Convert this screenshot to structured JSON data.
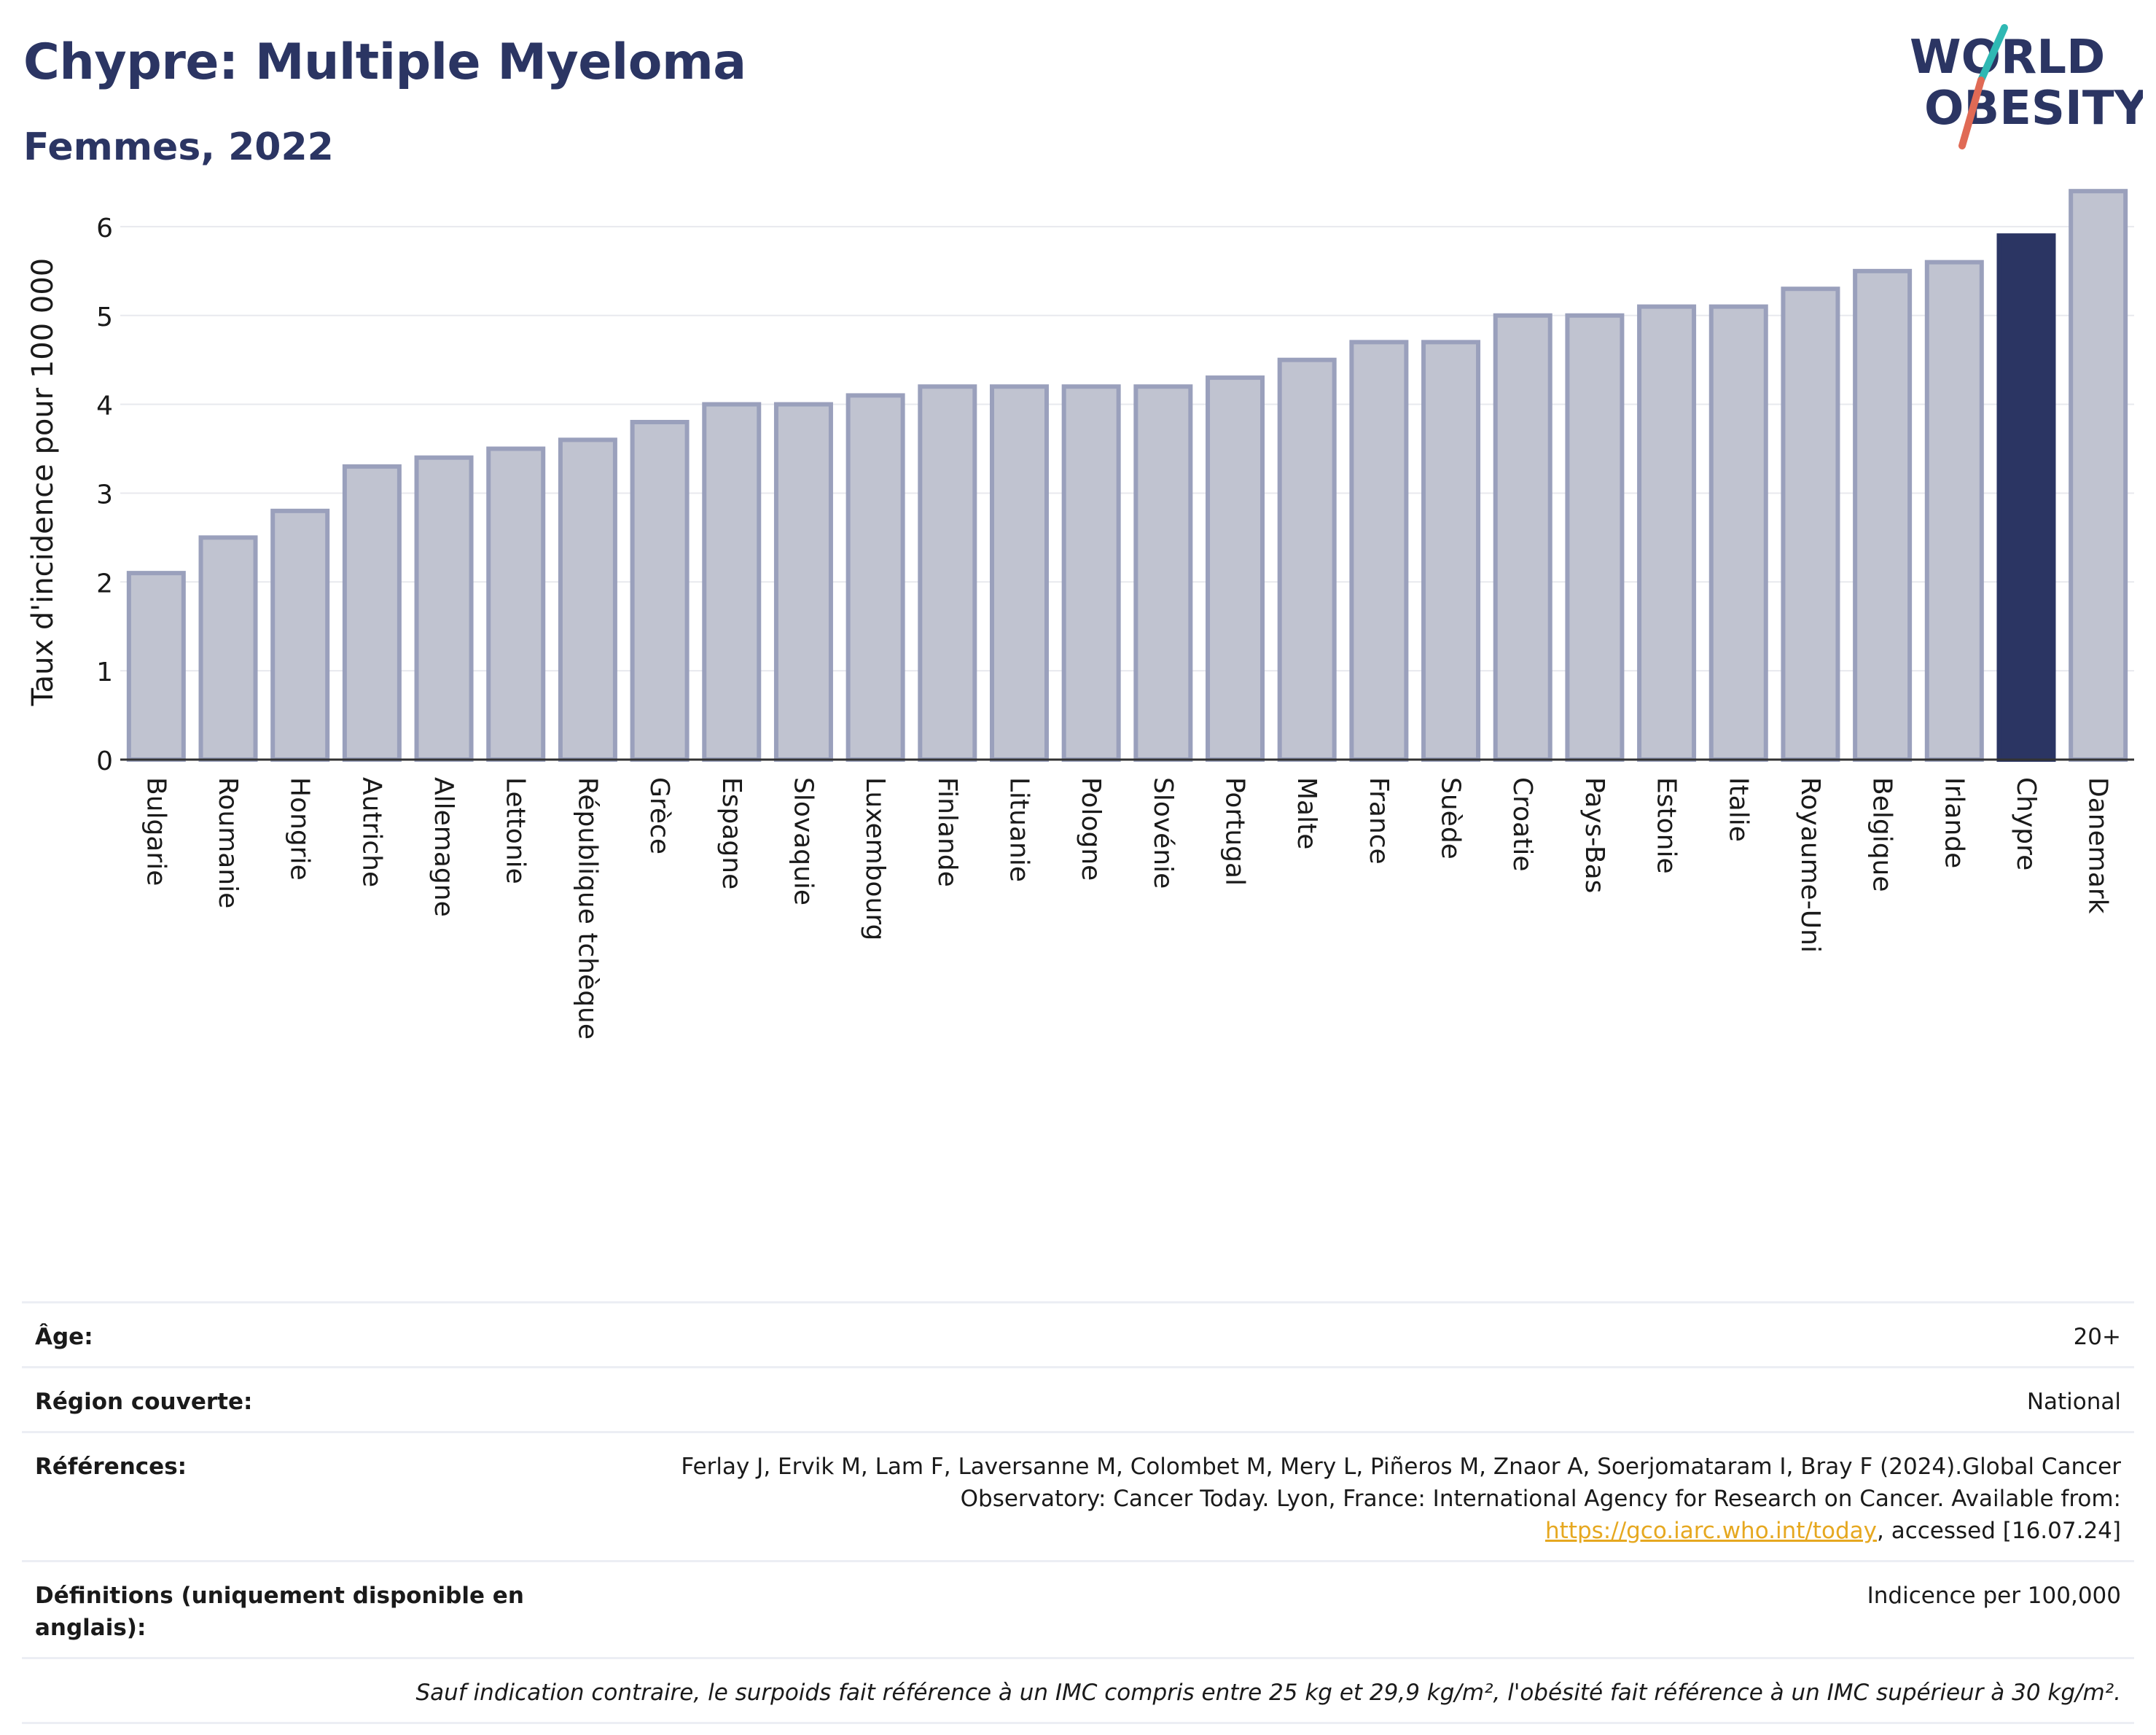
{
  "header": {
    "title": "Chypre: Multiple Myeloma",
    "subtitle": "Femmes, 2022"
  },
  "logo": {
    "line1": "WORLD",
    "line2": "OBESITY",
    "icon": "world-obesity-logo"
  },
  "colors": {
    "bar": "#c0c3d0",
    "bar_stroke": "#9aa0bc",
    "highlight": "#2b3563",
    "title": "#2b3563",
    "grid": "#e8e9ee",
    "link": "#e6a820"
  },
  "chart_data": {
    "type": "bar",
    "ylabel": "Taux d'incidence pour 100 000",
    "ylim": [
      0,
      6.5
    ],
    "yticks": [
      0,
      1,
      2,
      3,
      4,
      5,
      6
    ],
    "grid": true,
    "highlight": "Chypre",
    "categories": [
      "Bulgarie",
      "Roumanie",
      "Hongrie",
      "Autriche",
      "Allemagne",
      "Lettonie",
      "République tchèque",
      "Grèce",
      "Espagne",
      "Slovaquie",
      "Luxembourg",
      "Finlande",
      "Lituanie",
      "Pologne",
      "Slovénie",
      "Portugal",
      "Malte",
      "France",
      "Suède",
      "Croatie",
      "Pays-Bas",
      "Estonie",
      "Italie",
      "Royaume-Uni",
      "Belgique",
      "Irlande",
      "Chypre",
      "Danemark"
    ],
    "values": [
      2.1,
      2.5,
      2.8,
      3.3,
      3.4,
      3.5,
      3.6,
      3.8,
      4.0,
      4.0,
      4.1,
      4.2,
      4.2,
      4.2,
      4.2,
      4.3,
      4.5,
      4.7,
      4.7,
      5.0,
      5.0,
      5.1,
      5.1,
      5.3,
      5.5,
      5.6,
      5.9,
      6.4
    ]
  },
  "meta": {
    "age_label": "Âge:",
    "age_value": "20+",
    "region_label": "Région couverte:",
    "region_value": "National",
    "references_label": "Références:",
    "references_text_1": "Ferlay J, Ervik M, Lam F, Laversanne M, Colombet M, Mery L, Piñeros M, Znaor A, Soerjomataram I, Bray F (2024).Global Cancer Observatory: Cancer Today. Lyon, France: International Agency for Research on Cancer. Available from: ",
    "references_link": "https://gco.iarc.who.int/today",
    "references_text_2": ", accessed [16.07.24]",
    "definitions_label": "Définitions (uniquement disponible en anglais):",
    "definitions_value": "Indicence per 100,000",
    "note": "Sauf indication contraire, le surpoids fait référence à un IMC compris entre 25 kg et 29,9 kg/m², l'obésité fait référence à un IMC supérieur à 30 kg/m²."
  }
}
